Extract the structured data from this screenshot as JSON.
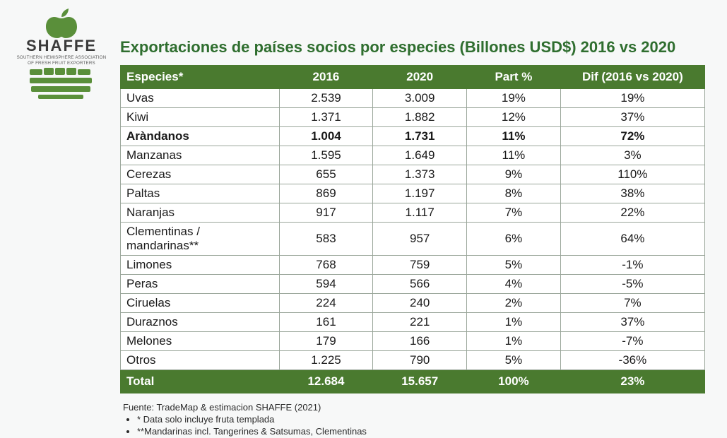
{
  "logo": {
    "brand": "SHAFFE",
    "subtitle_line1": "SOUTHERN HEMISPHERE ASSOCIATION",
    "subtitle_line2": "OF FRESH FRUIT EXPORTERS",
    "apple_fill": "#5a8f3a",
    "globe_fill": "#5a8f3a"
  },
  "title": {
    "text": "Exportaciones de países socios por especies (Billones USD$) 2016 vs 2020",
    "color": "#2f6e2f"
  },
  "table": {
    "header_bg": "#4a7a2f",
    "header_text_color": "#ffffff",
    "border_color": "#9aa69a",
    "row_text_color": "#1a1a1a",
    "columns": [
      {
        "key": "species",
        "label": "Especies*"
      },
      {
        "key": "y2016",
        "label": "2016"
      },
      {
        "key": "y2020",
        "label": "2020"
      },
      {
        "key": "part",
        "label": "Part %"
      },
      {
        "key": "dif",
        "label": "Dif  (2016 vs 2020)"
      }
    ],
    "rows": [
      {
        "species": "Uvas",
        "y2016": "2.539",
        "y2020": "3.009",
        "part": "19%",
        "dif": "19%",
        "bold": false
      },
      {
        "species": "Kiwi",
        "y2016": "1.371",
        "y2020": "1.882",
        "part": "12%",
        "dif": "37%",
        "bold": false
      },
      {
        "species": "Aràndanos",
        "y2016": "1.004",
        "y2020": "1.731",
        "part": "11%",
        "dif": "72%",
        "bold": true
      },
      {
        "species": "Manzanas",
        "y2016": "1.595",
        "y2020": "1.649",
        "part": "11%",
        "dif": "3%",
        "bold": false
      },
      {
        "species": "Cerezas",
        "y2016": "655",
        "y2020": "1.373",
        "part": "9%",
        "dif": "110%",
        "bold": false
      },
      {
        "species": "Paltas",
        "y2016": "869",
        "y2020": "1.197",
        "part": "8%",
        "dif": "38%",
        "bold": false
      },
      {
        "species": "Naranjas",
        "y2016": "917",
        "y2020": "1.117",
        "part": "7%",
        "dif": "22%",
        "bold": false
      },
      {
        "species": "Clementinas / mandarinas**",
        "y2016": "583",
        "y2020": "957",
        "part": "6%",
        "dif": "64%",
        "bold": false
      },
      {
        "species": "Limones",
        "y2016": "768",
        "y2020": "759",
        "part": "5%",
        "dif": "-1%",
        "bold": false
      },
      {
        "species": "Peras",
        "y2016": "594",
        "y2020": "566",
        "part": "4%",
        "dif": "-5%",
        "bold": false
      },
      {
        "species": "Ciruelas",
        "y2016": "224",
        "y2020": "240",
        "part": "2%",
        "dif": "7%",
        "bold": false
      },
      {
        "species": "Duraznos",
        "y2016": "161",
        "y2020": "221",
        "part": "1%",
        "dif": "37%",
        "bold": false
      },
      {
        "species": "Melones",
        "y2016": "179",
        "y2020": "166",
        "part": "1%",
        "dif": "-7%",
        "bold": false
      },
      {
        "species": "Otros",
        "y2016": "1.225",
        "y2020": "790",
        "part": "5%",
        "dif": "-36%",
        "bold": false
      }
    ],
    "total": {
      "label": "Total",
      "y2016": "12.684",
      "y2020": "15.657",
      "part": "100%",
      "dif": "23%"
    }
  },
  "footnotes": {
    "source": "Fuente: TradeMap & estimacion SHAFFE (2021)",
    "note1": "* Data solo incluye fruta templada",
    "note2": "**Mandarinas incl. Tangerines & Satsumas, Clementinas"
  }
}
